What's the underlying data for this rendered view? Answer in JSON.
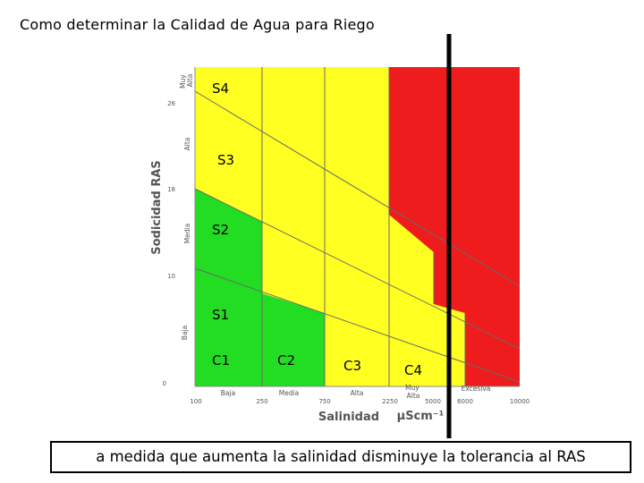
{
  "title": "Como determinar la Calidad de Agua para Riego",
  "caption": "a medida que aumenta la salinidad disminuye la tolerancia al RAS",
  "colors": {
    "green": "#22dd22",
    "yellow": "#ffff22",
    "red": "#ee1c1c",
    "line": "#6a6a6a"
  },
  "chart_data": {
    "type": "heatmap",
    "xlabel": "Salinidad",
    "xunit": "μScm⁻¹",
    "ylabel": "Sodicidad RAS",
    "x_ticks": [
      "100",
      "250",
      "750",
      "2250",
      "5000",
      "6000",
      "10000"
    ],
    "y_ticks": [
      "0",
      "10",
      "18",
      "26"
    ],
    "x_classes": [
      "Baja",
      "Media",
      "Alta",
      "Muy Alta",
      "Excesiva"
    ],
    "y_classes": [
      "Baja",
      "Media",
      "Alta",
      "Muy Alta"
    ],
    "salinity_zones": [
      "C1",
      "C2",
      "C3",
      "C4"
    ],
    "sodicity_zones": [
      "S1",
      "S2",
      "S3",
      "S4"
    ]
  }
}
